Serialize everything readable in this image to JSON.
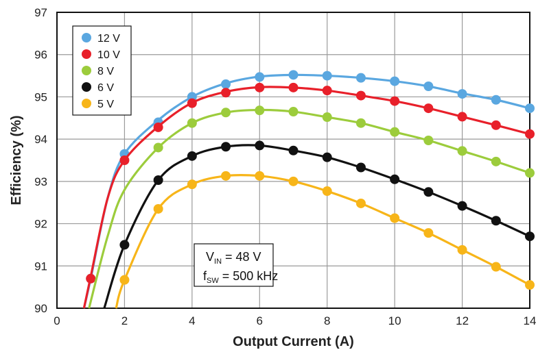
{
  "chart_data": {
    "type": "line",
    "title": "",
    "xlabel": "Output Current (A)",
    "ylabel": "Efficiency (%)",
    "xlim": [
      0,
      14
    ],
    "ylim": [
      90,
      97
    ],
    "x_ticks": [
      "0",
      "2",
      "4",
      "6",
      "8",
      "10",
      "12",
      "14"
    ],
    "y_ticks": [
      "90",
      "91",
      "92",
      "93",
      "94",
      "95",
      "96",
      "97"
    ],
    "grid": true,
    "legend_position": "top-left",
    "series": [
      {
        "name": "12 V",
        "color": "#5aa7e0",
        "markers": {
          "x": [
            1,
            2,
            3,
            4,
            5,
            6,
            7,
            8,
            9,
            10,
            11,
            12,
            13,
            14
          ],
          "y": [
            90.7,
            93.65,
            94.4,
            95.0,
            95.3,
            95.47,
            95.52,
            95.5,
            95.45,
            95.37,
            95.25,
            95.07,
            94.93,
            94.73
          ]
        },
        "curve": {
          "x": [
            0.8,
            1.0,
            1.5,
            2,
            3,
            4,
            5,
            6,
            7,
            8,
            9,
            10,
            11,
            12,
            13,
            14
          ],
          "y": [
            90.0,
            90.7,
            92.6,
            93.65,
            94.45,
            95.0,
            95.32,
            95.48,
            95.52,
            95.5,
            95.45,
            95.37,
            95.25,
            95.08,
            94.93,
            94.73
          ]
        }
      },
      {
        "name": "10 V",
        "color": "#e8202a",
        "markers": {
          "x": [
            1,
            2,
            3,
            4,
            5,
            6,
            7,
            8,
            9,
            10,
            11,
            12,
            13,
            14
          ],
          "y": [
            90.7,
            93.5,
            94.28,
            94.85,
            95.1,
            95.22,
            95.22,
            95.15,
            95.03,
            94.9,
            94.73,
            94.53,
            94.33,
            94.12
          ]
        },
        "curve": {
          "x": [
            0.8,
            1.0,
            1.5,
            2,
            3,
            4,
            5,
            6,
            7,
            8,
            9,
            10,
            11,
            12,
            13,
            14
          ],
          "y": [
            90.0,
            90.75,
            92.6,
            93.5,
            94.3,
            94.86,
            95.12,
            95.23,
            95.22,
            95.15,
            95.03,
            94.9,
            94.73,
            94.53,
            94.33,
            94.12
          ]
        }
      },
      {
        "name": "8 V",
        "color": "#9ccc3c",
        "markers": {
          "x": [
            3,
            4,
            5,
            6,
            7,
            8,
            9,
            10,
            11,
            12,
            13,
            14
          ],
          "y": [
            93.8,
            94.38,
            94.63,
            94.68,
            94.65,
            94.52,
            94.38,
            94.17,
            93.97,
            93.72,
            93.47,
            93.2
          ]
        },
        "curve": {
          "x": [
            0.95,
            1.5,
            2,
            3,
            4,
            5,
            6,
            7,
            8,
            9,
            10,
            11,
            12,
            13,
            14
          ],
          "y": [
            90.0,
            91.7,
            92.8,
            93.8,
            94.38,
            94.63,
            94.69,
            94.65,
            94.52,
            94.38,
            94.17,
            93.97,
            93.72,
            93.47,
            93.2
          ]
        }
      },
      {
        "name": "6 V",
        "color": "#111111",
        "markers": {
          "x": [
            2,
            3,
            4,
            5,
            6,
            7,
            8,
            9,
            10,
            11,
            12,
            13,
            14
          ],
          "y": [
            91.5,
            93.03,
            93.6,
            93.82,
            93.85,
            93.73,
            93.57,
            93.33,
            93.05,
            92.75,
            92.42,
            92.07,
            91.7
          ]
        },
        "curve": {
          "x": [
            1.4,
            2,
            3,
            4,
            5,
            6,
            7,
            8,
            9,
            10,
            11,
            12,
            13,
            14
          ],
          "y": [
            90.0,
            91.5,
            93.03,
            93.6,
            93.82,
            93.85,
            93.73,
            93.57,
            93.33,
            93.05,
            92.75,
            92.42,
            92.07,
            91.7
          ]
        }
      },
      {
        "name": "5 V",
        "color": "#f7b519",
        "markers": {
          "x": [
            2,
            3,
            4,
            5,
            6,
            7,
            8,
            9,
            10,
            11,
            12,
            13,
            14
          ],
          "y": [
            90.67,
            92.35,
            92.93,
            93.13,
            93.13,
            93.0,
            92.77,
            92.48,
            92.13,
            91.78,
            91.38,
            90.98,
            90.55
          ]
        },
        "curve": {
          "x": [
            1.75,
            2,
            3,
            4,
            5,
            6,
            7,
            8,
            9,
            10,
            11,
            12,
            13,
            14
          ],
          "y": [
            90.0,
            90.67,
            92.35,
            92.93,
            93.13,
            93.13,
            93.0,
            92.77,
            92.48,
            92.13,
            91.78,
            91.38,
            90.98,
            90.55
          ]
        }
      }
    ],
    "annotation": {
      "line1_main": "V",
      "line1_sub": "IN",
      "line1_rest": " = 48 V",
      "line2_main": "f",
      "line2_sub": "SW",
      "line2_rest": " = 500 kHz"
    }
  }
}
